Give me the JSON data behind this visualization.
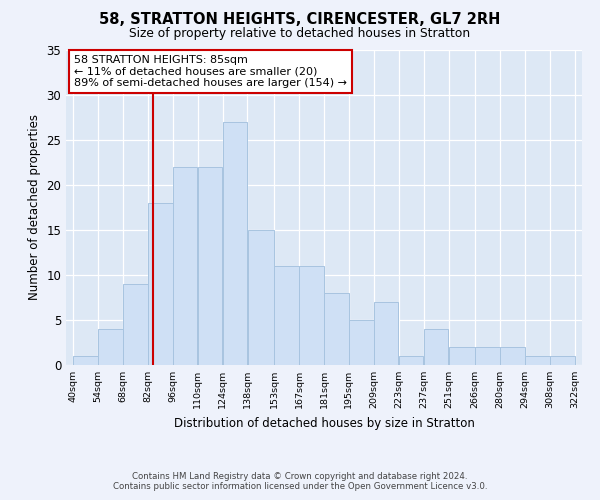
{
  "title": "58, STRATTON HEIGHTS, CIRENCESTER, GL7 2RH",
  "subtitle": "Size of property relative to detached houses in Stratton",
  "xlabel": "Distribution of detached houses by size in Stratton",
  "ylabel": "Number of detached properties",
  "bar_left_edges": [
    40,
    54,
    68,
    82,
    96,
    110,
    124,
    138,
    153,
    167,
    181,
    195,
    209,
    223,
    237,
    251,
    266,
    280,
    294,
    308
  ],
  "bar_widths": [
    14,
    14,
    14,
    14,
    14,
    14,
    14,
    15,
    14,
    14,
    14,
    14,
    14,
    14,
    14,
    15,
    14,
    14,
    14,
    14
  ],
  "bar_heights": [
    1,
    4,
    9,
    18,
    22,
    22,
    27,
    15,
    11,
    11,
    8,
    5,
    7,
    1,
    4,
    2,
    2,
    2,
    1,
    1
  ],
  "bar_color": "#cfe0f5",
  "bar_edge_color": "#a8c4e0",
  "tick_labels": [
    "40sqm",
    "54sqm",
    "68sqm",
    "82sqm",
    "96sqm",
    "110sqm",
    "124sqm",
    "138sqm",
    "153sqm",
    "167sqm",
    "181sqm",
    "195sqm",
    "209sqm",
    "223sqm",
    "237sqm",
    "251sqm",
    "266sqm",
    "280sqm",
    "294sqm",
    "308sqm",
    "322sqm"
  ],
  "ylim": [
    0,
    35
  ],
  "yticks": [
    0,
    5,
    10,
    15,
    20,
    25,
    30,
    35
  ],
  "xlim": [
    36,
    326
  ],
  "property_line_x": 85,
  "property_line_color": "#cc0000",
  "annotation_line1": "58 STRATTON HEIGHTS: 85sqm",
  "annotation_line2": "← 11% of detached houses are smaller (20)",
  "annotation_line3": "89% of semi-detached houses are larger (154) →",
  "annotation_box_color": "#ffffff",
  "annotation_box_edge": "#cc0000",
  "footer_line1": "Contains HM Land Registry data © Crown copyright and database right 2024.",
  "footer_line2": "Contains public sector information licensed under the Open Government Licence v3.0.",
  "background_color": "#eef2fb",
  "plot_bg_color": "#dde8f5"
}
